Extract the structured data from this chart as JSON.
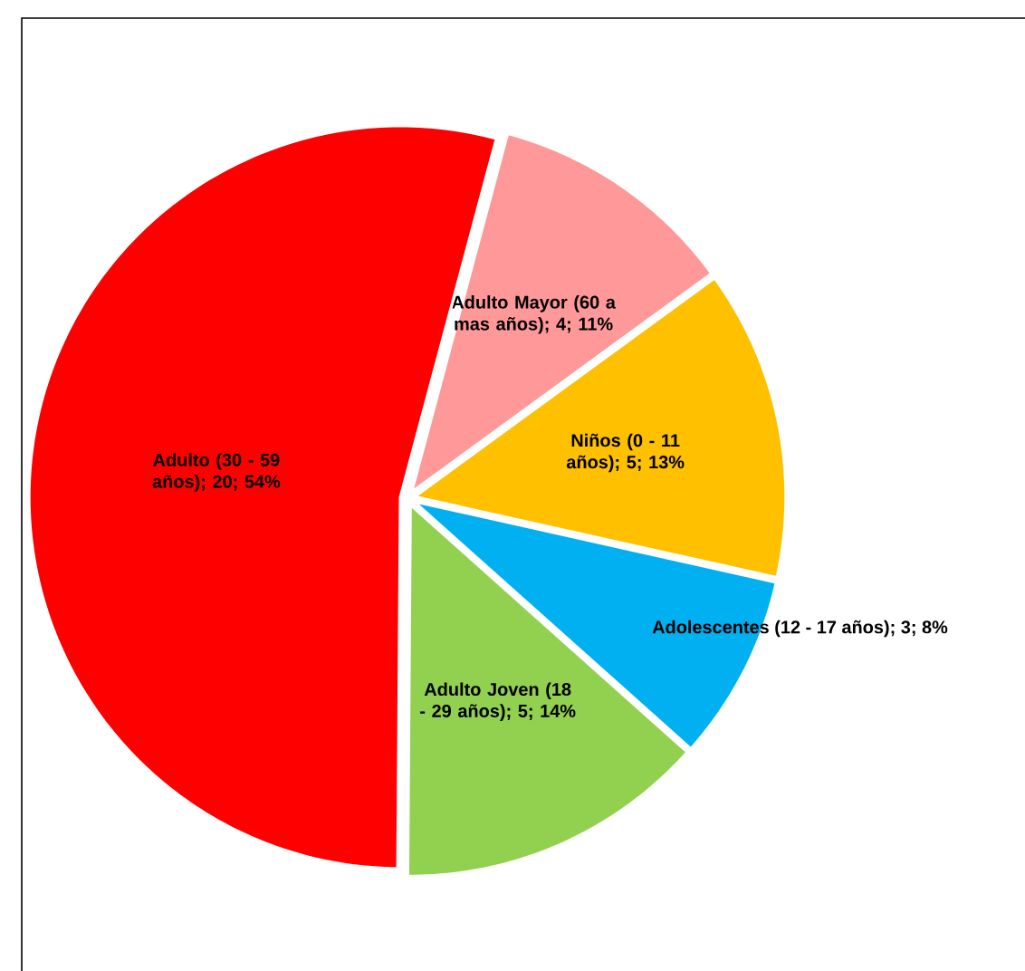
{
  "chart_data": {
    "type": "pie",
    "categories": [
      "Adulto Mayor (60 a mas años)",
      "Niños (0 - 11 años)",
      "Adolescentes (12 - 17 años)",
      "Adulto Joven (18 - 29 años)",
      "Adulto (30 - 59 años)"
    ],
    "values": [
      4,
      5,
      3,
      5,
      20
    ],
    "value_labels": [
      "; 4; 11%",
      "; 5; 13%",
      "; 3; 8%",
      "; 5; 14%",
      "; 20; 54%"
    ],
    "colors": [
      "#ff9999",
      "#ffc000",
      "#00b0f0",
      "#92d050",
      "#ff0000"
    ]
  }
}
